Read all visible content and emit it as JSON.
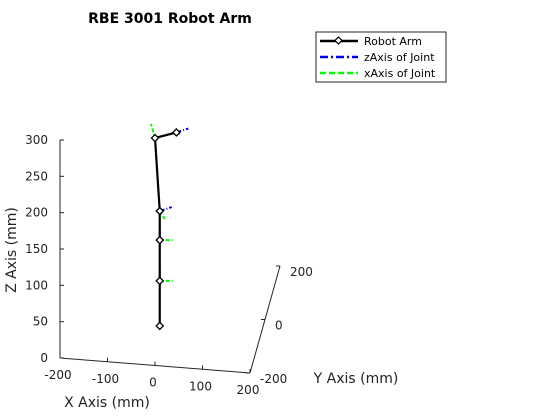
{
  "chart_data": {
    "type": "line",
    "title": "RBE 3001 Robot Arm",
    "xlabel": "X Axis (mm)",
    "ylabel": "Y Axis (mm)",
    "zlabel": "Z Axis (mm)",
    "x_ticks": [
      "-200",
      "-100",
      "0",
      "100",
      "200"
    ],
    "y_ticks": [
      "-200",
      "0",
      "200"
    ],
    "z_ticks": [
      "0",
      "50",
      "100",
      "150",
      "200",
      "250",
      "300"
    ],
    "xlim": [
      -200,
      200
    ],
    "ylim": [
      -200,
      200
    ],
    "zlim": [
      0,
      300
    ],
    "legend_position": "top-right",
    "colors": {
      "arm": "#000000",
      "z_axis": "#0000ff",
      "x_axis": "#00ff00"
    },
    "series": [
      {
        "name": "Robot Arm",
        "style": "solid with diamond markers",
        "points": [
          {
            "x": 10,
            "y": 0,
            "z": 0
          },
          {
            "x": 10,
            "y": 0,
            "z": 62
          },
          {
            "x": 10,
            "y": 0,
            "z": 118
          },
          {
            "x": 10,
            "y": 0,
            "z": 158
          },
          {
            "x": 0,
            "y": 0,
            "z": 258
          },
          {
            "x": 45,
            "y": 0,
            "z": 268
          }
        ]
      },
      {
        "name": "zAxis of Joint",
        "style": "dash-dot"
      },
      {
        "name": "xAxis of Joint",
        "style": "dashed"
      }
    ]
  }
}
